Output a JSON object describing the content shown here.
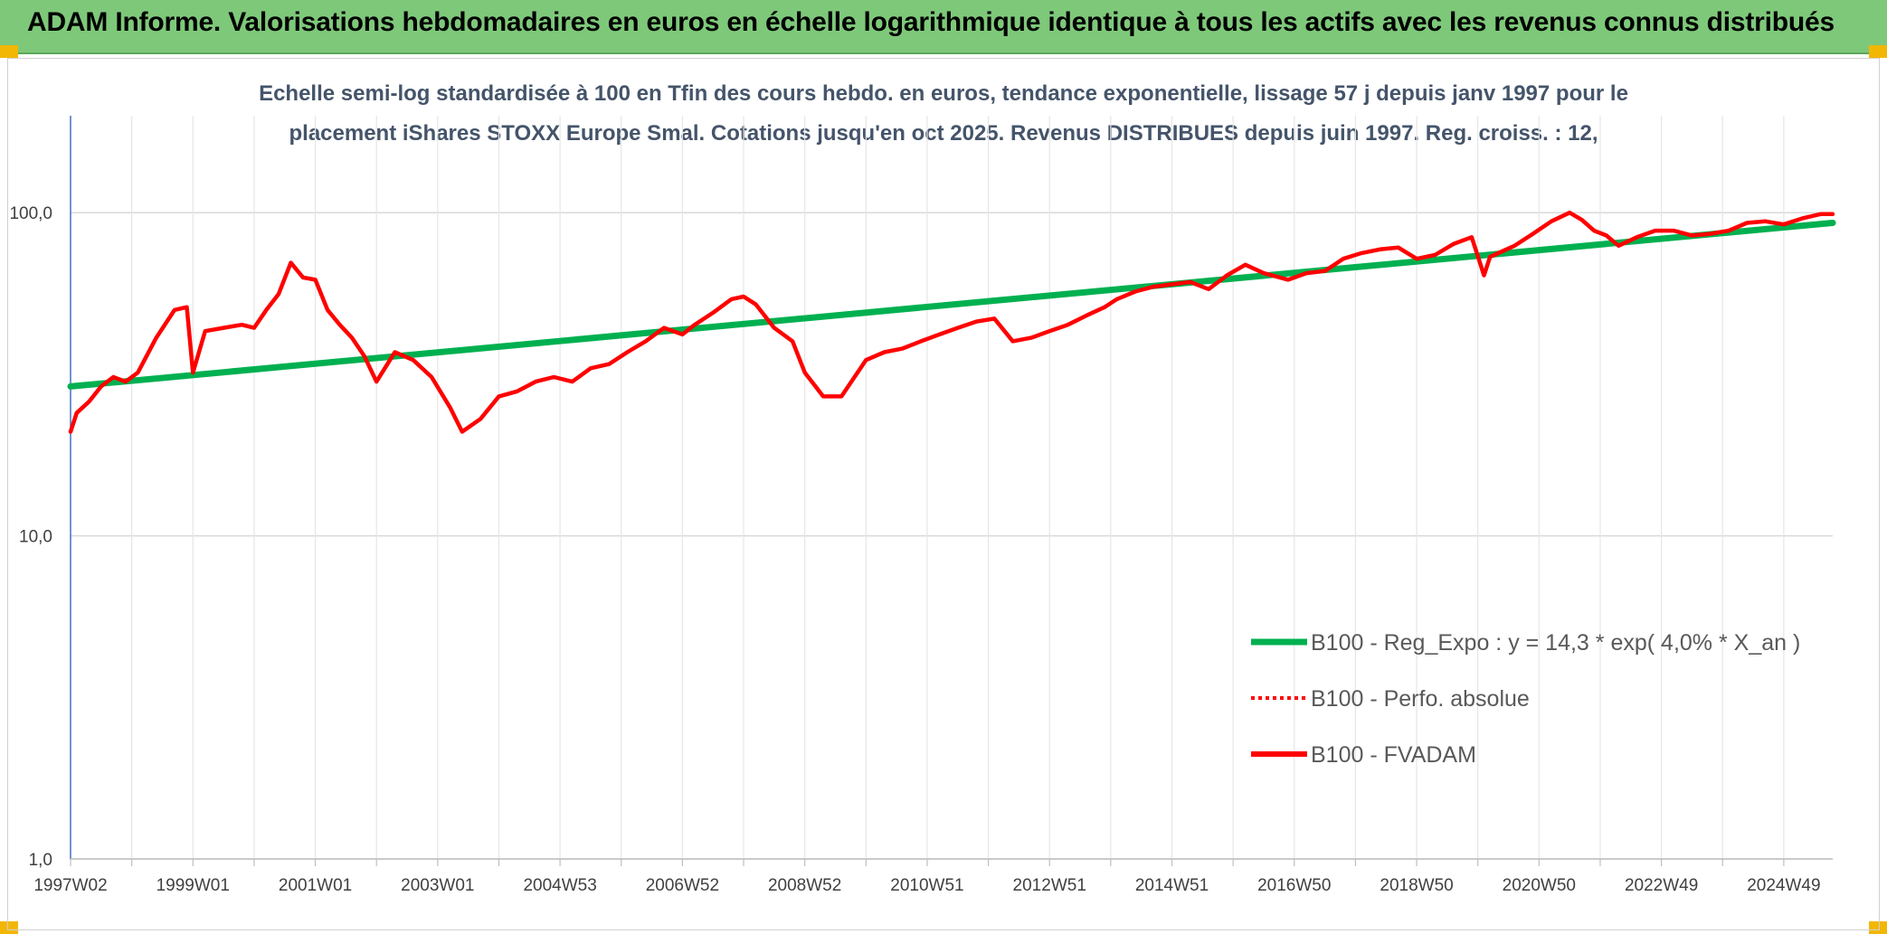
{
  "header": {
    "title": "ADAM Informe. Valorisations hebdomadaires en euros en échelle logarithmique identique à tous les actifs avec les revenus connus distribués"
  },
  "chart_data": {
    "type": "line",
    "title_line1": "Echelle semi-log standardisée à 100 en Tfin des cours hebdo. en euros, tendance exponentielle, lissage 57 j depuis janv 1997 pour le",
    "title_line2": "placement iShares STOXX Europe Smal. Cotations jusqu'en oct 2025. Revenus DISTRIBUES depuis juin 1997. Reg. croiss. : 12,",
    "yscale": "log",
    "ylim": [
      1,
      100
    ],
    "y_ticks": [
      "1,0",
      "10,0",
      "100,0"
    ],
    "y_tick_values": [
      1,
      10,
      100
    ],
    "x_ticks": [
      "1997W02",
      "1999W01",
      "2001W01",
      "2003W01",
      "2004W53",
      "2006W52",
      "2008W52",
      "2010W51",
      "2012W51",
      "2014W51",
      "2016W50",
      "2018W50",
      "2020W50",
      "2022W49",
      "2024W49"
    ],
    "x_tick_years": [
      1997,
      1999,
      2001,
      2003,
      2005,
      2007,
      2009,
      2011,
      2013,
      2015,
      2017,
      2019,
      2021,
      2023,
      2025
    ],
    "xlim": [
      1997.0,
      2025.8
    ],
    "grid": true,
    "legend_position": "lower-right",
    "series": [
      {
        "name": "B100 - Reg_Expo : y = 14,3 * exp( 4,0% *  X_an )",
        "color": "#00b050",
        "style": "solid-thick",
        "x": [
          1997.0,
          2025.8
        ],
        "y": [
          29,
          93
        ]
      },
      {
        "name": "B100 - Perfo. absolue",
        "color": "#ff0000",
        "style": "dotted",
        "x": [],
        "y": []
      },
      {
        "name": "B100 - FVADAM",
        "color": "#ff0000",
        "style": "solid",
        "x": [
          1997.0,
          1997.1,
          1997.3,
          1997.5,
          1997.7,
          1997.9,
          1998.1,
          1998.4,
          1998.7,
          1998.9,
          1999.0,
          1999.2,
          1999.5,
          1999.8,
          2000.0,
          2000.2,
          2000.4,
          2000.6,
          2000.8,
          2001.0,
          2001.2,
          2001.4,
          2001.6,
          2001.8,
          2002.0,
          2002.3,
          2002.6,
          2002.9,
          2003.2,
          2003.4,
          2003.7,
          2004.0,
          2004.3,
          2004.6,
          2004.9,
          2005.2,
          2005.5,
          2005.8,
          2006.1,
          2006.4,
          2006.7,
          2007.0,
          2007.2,
          2007.5,
          2007.8,
          2008.0,
          2008.2,
          2008.5,
          2008.8,
          2009.0,
          2009.3,
          2009.6,
          2010.0,
          2010.3,
          2010.6,
          2010.9,
          2011.2,
          2011.5,
          2011.8,
          2012.1,
          2012.4,
          2012.7,
          2013.0,
          2013.3,
          2013.6,
          2013.9,
          2014.1,
          2014.4,
          2014.7,
          2015.0,
          2015.3,
          2015.6,
          2015.9,
          2016.2,
          2016.5,
          2016.9,
          2017.2,
          2017.5,
          2017.8,
          2018.1,
          2018.4,
          2018.7,
          2019.0,
          2019.3,
          2019.6,
          2019.9,
          2020.1,
          2020.2,
          2020.4,
          2020.6,
          2020.9,
          2021.2,
          2021.5,
          2021.7,
          2021.9,
          2022.1,
          2022.3,
          2022.6,
          2022.9,
          2023.2,
          2023.5,
          2023.8,
          2024.1,
          2024.4,
          2024.7,
          2025.0,
          2025.3,
          2025.6,
          2025.8
        ],
        "y": [
          21,
          24,
          26,
          29,
          31,
          30,
          32,
          41,
          50,
          51,
          32,
          43,
          44,
          45,
          44,
          50,
          56,
          70,
          63,
          62,
          50,
          45,
          41,
          36,
          30,
          37,
          35,
          31,
          25,
          21,
          23,
          27,
          28,
          30,
          31,
          30,
          33,
          34,
          37,
          40,
          44,
          42,
          45,
          49,
          54,
          55,
          52,
          44,
          40,
          32,
          27,
          27,
          35,
          37,
          38,
          40,
          42,
          44,
          46,
          47,
          40,
          41,
          43,
          45,
          48,
          51,
          54,
          57,
          59,
          60,
          61,
          58,
          64,
          69,
          65,
          62,
          65,
          66,
          72,
          75,
          77,
          78,
          72,
          74,
          80,
          84,
          64,
          73,
          76,
          79,
          86,
          94,
          100,
          95,
          88,
          85,
          79,
          84,
          88,
          88,
          85,
          86,
          88,
          93,
          94,
          92,
          96,
          99,
          99
        ]
      }
    ]
  }
}
